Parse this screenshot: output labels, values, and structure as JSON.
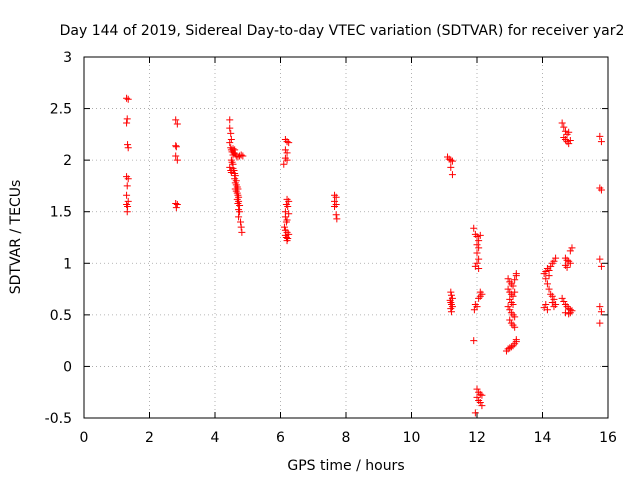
{
  "chart_data": {
    "type": "scatter",
    "title": "Day 144 of 2019, Sidereal Day-to-day VTEC variation (SDTVAR) for receiver yar2",
    "xlabel": "GPS time / hours",
    "ylabel": "SDTVAR / TECUs",
    "xlim": [
      0,
      16
    ],
    "ylim": [
      -0.5,
      3
    ],
    "xticks": [
      0,
      2,
      4,
      6,
      8,
      10,
      12,
      14,
      16
    ],
    "xtick_labels": [
      "0",
      "2",
      "4",
      "6",
      "8",
      "10",
      "12",
      "14",
      "16"
    ],
    "yticks": [
      -0.5,
      0,
      0.5,
      1,
      1.5,
      2,
      2.5,
      3
    ],
    "ytick_labels": [
      "-0.5",
      "0",
      "0.5",
      "1",
      "1.5",
      "2",
      "2.5",
      "3"
    ],
    "grid": true,
    "marker": "+",
    "color": "#ff0000",
    "series": [
      {
        "name": "SDTVAR",
        "points": [
          [
            1.3,
            2.6
          ],
          [
            1.35,
            2.59
          ],
          [
            1.32,
            2.4
          ],
          [
            1.3,
            2.36
          ],
          [
            1.33,
            2.15
          ],
          [
            1.35,
            2.12
          ],
          [
            1.3,
            1.84
          ],
          [
            1.35,
            1.82
          ],
          [
            1.32,
            1.75
          ],
          [
            1.3,
            1.66
          ],
          [
            1.35,
            1.6
          ],
          [
            1.3,
            1.57
          ],
          [
            1.33,
            1.55
          ],
          [
            1.32,
            1.5
          ],
          [
            2.8,
            2.39
          ],
          [
            2.85,
            2.35
          ],
          [
            2.8,
            2.14
          ],
          [
            2.82,
            2.13
          ],
          [
            2.8,
            2.04
          ],
          [
            2.85,
            2.0
          ],
          [
            2.8,
            1.58
          ],
          [
            2.85,
            1.57
          ],
          [
            2.82,
            1.54
          ],
          [
            4.45,
            2.39
          ],
          [
            4.45,
            2.31
          ],
          [
            4.48,
            2.26
          ],
          [
            4.5,
            2.2
          ],
          [
            4.45,
            2.17
          ],
          [
            4.48,
            2.12
          ],
          [
            4.5,
            2.1
          ],
          [
            4.52,
            2.08
          ],
          [
            4.55,
            2.11
          ],
          [
            4.55,
            2.05
          ],
          [
            4.58,
            2.07
          ],
          [
            4.6,
            2.1
          ],
          [
            4.62,
            2.06
          ],
          [
            4.65,
            2.04
          ],
          [
            4.7,
            2.03
          ],
          [
            4.75,
            2.04
          ],
          [
            4.8,
            2.05
          ],
          [
            4.85,
            2.04
          ],
          [
            4.5,
            2.0
          ],
          [
            4.52,
            1.98
          ],
          [
            4.55,
            1.96
          ],
          [
            4.45,
            1.93
          ],
          [
            4.48,
            1.9
          ],
          [
            4.5,
            1.88
          ],
          [
            4.55,
            1.92
          ],
          [
            4.58,
            1.9
          ],
          [
            4.6,
            1.87
          ],
          [
            4.62,
            1.85
          ],
          [
            4.6,
            1.82
          ],
          [
            4.65,
            1.8
          ],
          [
            4.62,
            1.78
          ],
          [
            4.65,
            1.76
          ],
          [
            4.68,
            1.74
          ],
          [
            4.62,
            1.72
          ],
          [
            4.65,
            1.7
          ],
          [
            4.7,
            1.72
          ],
          [
            4.68,
            1.68
          ],
          [
            4.7,
            1.66
          ],
          [
            4.72,
            1.64
          ],
          [
            4.68,
            1.62
          ],
          [
            4.72,
            1.6
          ],
          [
            4.7,
            1.58
          ],
          [
            4.75,
            1.56
          ],
          [
            4.72,
            1.52
          ],
          [
            4.75,
            1.5
          ],
          [
            4.72,
            1.45
          ],
          [
            4.78,
            1.4
          ],
          [
            4.8,
            1.35
          ],
          [
            4.82,
            1.3
          ],
          [
            6.15,
            2.2
          ],
          [
            6.2,
            2.18
          ],
          [
            6.25,
            2.17
          ],
          [
            6.15,
            2.1
          ],
          [
            6.2,
            2.07
          ],
          [
            6.15,
            2.02
          ],
          [
            6.2,
            2.0
          ],
          [
            6.1,
            1.96
          ],
          [
            6.2,
            1.62
          ],
          [
            6.25,
            1.6
          ],
          [
            6.18,
            1.57
          ],
          [
            6.22,
            1.55
          ],
          [
            6.15,
            1.5
          ],
          [
            6.25,
            1.48
          ],
          [
            6.15,
            1.45
          ],
          [
            6.2,
            1.42
          ],
          [
            6.18,
            1.4
          ],
          [
            6.12,
            1.35
          ],
          [
            6.15,
            1.32
          ],
          [
            6.2,
            1.3
          ],
          [
            6.25,
            1.28
          ],
          [
            6.15,
            1.27
          ],
          [
            6.18,
            1.25
          ],
          [
            6.22,
            1.24
          ],
          [
            6.2,
            1.22
          ],
          [
            7.65,
            1.66
          ],
          [
            7.7,
            1.64
          ],
          [
            7.65,
            1.6
          ],
          [
            7.7,
            1.57
          ],
          [
            7.65,
            1.55
          ],
          [
            7.7,
            1.47
          ],
          [
            7.72,
            1.43
          ],
          [
            11.1,
            2.03
          ],
          [
            11.15,
            2.01
          ],
          [
            11.2,
            2.0
          ],
          [
            11.25,
            1.99
          ],
          [
            11.2,
            1.93
          ],
          [
            11.25,
            1.86
          ],
          [
            11.2,
            0.72
          ],
          [
            11.22,
            0.69
          ],
          [
            11.25,
            0.66
          ],
          [
            11.18,
            0.64
          ],
          [
            11.2,
            0.62
          ],
          [
            11.22,
            0.6
          ],
          [
            11.25,
            0.58
          ],
          [
            11.2,
            0.56
          ],
          [
            11.22,
            0.53
          ],
          [
            11.9,
            1.34
          ],
          [
            11.95,
            1.28
          ],
          [
            12.0,
            1.26
          ],
          [
            12.05,
            1.22
          ],
          [
            12.1,
            1.27
          ],
          [
            12.0,
            1.18
          ],
          [
            12.05,
            1.15
          ],
          [
            12.0,
            1.1
          ],
          [
            12.05,
            1.04
          ],
          [
            12.0,
            1.0
          ],
          [
            11.95,
            0.97
          ],
          [
            12.05,
            0.95
          ],
          [
            12.1,
            0.72
          ],
          [
            12.15,
            0.7
          ],
          [
            12.1,
            0.68
          ],
          [
            12.05,
            0.66
          ],
          [
            11.95,
            0.6
          ],
          [
            12.0,
            0.58
          ],
          [
            11.92,
            0.55
          ],
          [
            11.9,
            0.25
          ],
          [
            12.0,
            -0.22
          ],
          [
            12.05,
            -0.25
          ],
          [
            12.1,
            -0.27
          ],
          [
            12.15,
            -0.28
          ],
          [
            12.0,
            -0.3
          ],
          [
            12.05,
            -0.33
          ],
          [
            12.1,
            -0.35
          ],
          [
            12.15,
            -0.38
          ],
          [
            11.95,
            -0.45
          ],
          [
            12.95,
            0.85
          ],
          [
            13.0,
            0.82
          ],
          [
            13.05,
            0.8
          ],
          [
            13.1,
            0.78
          ],
          [
            13.15,
            0.84
          ],
          [
            13.2,
            0.88
          ],
          [
            13.2,
            0.9
          ],
          [
            12.95,
            0.75
          ],
          [
            13.0,
            0.72
          ],
          [
            13.05,
            0.7
          ],
          [
            13.1,
            0.68
          ],
          [
            13.15,
            0.72
          ],
          [
            13.0,
            0.65
          ],
          [
            13.05,
            0.62
          ],
          [
            13.1,
            0.6
          ],
          [
            12.95,
            0.58
          ],
          [
            13.0,
            0.55
          ],
          [
            13.05,
            0.52
          ],
          [
            13.1,
            0.5
          ],
          [
            13.15,
            0.48
          ],
          [
            13.0,
            0.45
          ],
          [
            13.05,
            0.42
          ],
          [
            13.1,
            0.4
          ],
          [
            13.15,
            0.38
          ],
          [
            12.9,
            0.15
          ],
          [
            12.95,
            0.17
          ],
          [
            13.0,
            0.18
          ],
          [
            13.05,
            0.19
          ],
          [
            13.1,
            0.2
          ],
          [
            13.15,
            0.22
          ],
          [
            13.2,
            0.24
          ],
          [
            13.2,
            0.26
          ],
          [
            14.05,
            0.9
          ],
          [
            14.1,
            0.92
          ],
          [
            14.15,
            0.95
          ],
          [
            14.2,
            0.93
          ],
          [
            14.25,
            0.97
          ],
          [
            14.3,
            1.0
          ],
          [
            14.35,
            1.02
          ],
          [
            14.4,
            1.05
          ],
          [
            14.1,
            0.85
          ],
          [
            14.2,
            0.88
          ],
          [
            14.15,
            0.8
          ],
          [
            14.2,
            0.75
          ],
          [
            14.25,
            0.7
          ],
          [
            14.3,
            0.68
          ],
          [
            14.35,
            0.65
          ],
          [
            14.3,
            0.62
          ],
          [
            14.4,
            0.6
          ],
          [
            14.35,
            0.58
          ],
          [
            14.1,
            0.6
          ],
          [
            14.05,
            0.57
          ],
          [
            14.15,
            0.55
          ],
          [
            14.6,
            2.36
          ],
          [
            14.65,
            2.32
          ],
          [
            14.7,
            2.28
          ],
          [
            14.75,
            2.25
          ],
          [
            14.8,
            2.27
          ],
          [
            14.65,
            2.22
          ],
          [
            14.7,
            2.2
          ],
          [
            14.75,
            2.18
          ],
          [
            14.8,
            2.16
          ],
          [
            14.85,
            2.19
          ],
          [
            14.7,
            1.05
          ],
          [
            14.75,
            1.03
          ],
          [
            14.8,
            1.02
          ],
          [
            14.85,
            1.0
          ],
          [
            14.7,
            0.98
          ],
          [
            14.75,
            0.96
          ],
          [
            14.85,
            1.12
          ],
          [
            14.9,
            1.15
          ],
          [
            14.6,
            0.66
          ],
          [
            14.65,
            0.63
          ],
          [
            14.7,
            0.6
          ],
          [
            14.75,
            0.58
          ],
          [
            14.8,
            0.56
          ],
          [
            14.85,
            0.55
          ],
          [
            14.9,
            0.54
          ],
          [
            14.7,
            0.52
          ],
          [
            14.8,
            0.51
          ],
          [
            14.85,
            0.52
          ],
          [
            15.75,
            2.23
          ],
          [
            15.8,
            2.18
          ],
          [
            15.75,
            1.73
          ],
          [
            15.8,
            1.71
          ],
          [
            15.75,
            1.04
          ],
          [
            15.8,
            0.97
          ],
          [
            15.75,
            0.58
          ],
          [
            15.8,
            0.53
          ],
          [
            15.75,
            0.42
          ]
        ]
      }
    ]
  }
}
